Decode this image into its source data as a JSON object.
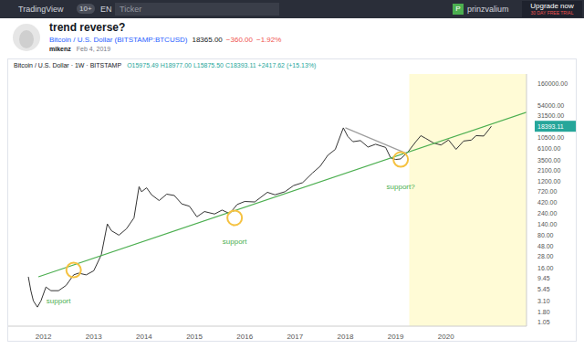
{
  "page": {
    "app": "TradingView",
    "badge": "10+",
    "lang": "EN",
    "search": "Ticker",
    "user": "prinzvalium",
    "upgrade": "Upgrade now",
    "trial": "30 DAY FREE TRIAL",
    "idea": {
      "title": "trend reverse?",
      "symbol": "Bitcoin / U.S. Dollar (BITSTAMP:BTCUSD)",
      "price": "18365.00",
      "change": "−360.00",
      "change_pct": "−1.92%",
      "author": "mikenz",
      "date": "Feb 4, 2019"
    }
  },
  "chart_data": {
    "type": "line",
    "title": "Bitcoin / U.S. Dollar · 1W · BITSTAMP",
    "subtitle": "O15975.49 H18977.00 L15875.50 C18393.11 +2417.62 (+15.13%)",
    "log": "y",
    "grid": false,
    "xlim": [
      2011.3,
      2021.6
    ],
    "xticks": [
      2012,
      2013,
      2014,
      2015,
      2016,
      2017,
      2018,
      2019,
      2020
    ],
    "ylim": [
      0.85,
      250000
    ],
    "yticks": [
      {
        "value": 1.05,
        "label": "1.05"
      },
      {
        "value": 1.8,
        "label": "1.80"
      },
      {
        "value": 3.1,
        "label": "3.10"
      },
      {
        "value": 5.45,
        "label": "5.45"
      },
      {
        "value": 9.45,
        "label": "9.45"
      },
      {
        "value": 16,
        "label": "16.00"
      },
      {
        "value": 28,
        "label": "28.00"
      },
      {
        "value": 48,
        "label": "48.00"
      },
      {
        "value": 80,
        "label": "80.00"
      },
      {
        "value": 140,
        "label": "140.00"
      },
      {
        "value": 240,
        "label": "240.00"
      },
      {
        "value": 420,
        "label": "420.00"
      },
      {
        "value": 720,
        "label": "720.00"
      },
      {
        "value": 1200,
        "label": "1200.00"
      },
      {
        "value": 2100,
        "label": "2100.00"
      },
      {
        "value": 3500,
        "label": "3500.00"
      },
      {
        "value": 6100,
        "label": "6100.00"
      },
      {
        "value": 10500,
        "label": "10500.00"
      },
      {
        "value": 18393.11,
        "label": "18393.11"
      },
      {
        "value": 31500,
        "label": "31500.00"
      },
      {
        "value": 54000,
        "label": "54000.00"
      },
      {
        "value": 160000,
        "label": "160000.00"
      }
    ],
    "shaded_x": [
      2019.27,
      2021.6
    ],
    "series": [
      {
        "name": "Bitcoin / U.S. Dollar",
        "color": "#333333",
        "line_style": "solid",
        "x": [
          2011.7,
          2011.75,
          2011.8,
          2011.88,
          2011.95,
          2012.05,
          2012.15,
          2012.3,
          2012.45,
          2012.6,
          2012.7,
          2012.85,
          2013.0,
          2013.15,
          2013.27,
          2013.35,
          2013.5,
          2013.65,
          2013.8,
          2013.9,
          2013.95,
          2014.05,
          2014.15,
          2014.3,
          2014.45,
          2014.6,
          2014.75,
          2014.9,
          2015.05,
          2015.2,
          2015.4,
          2015.55,
          2015.7,
          2015.85,
          2016.0,
          2016.2,
          2016.45,
          2016.6,
          2016.8,
          2016.97,
          2017.15,
          2017.35,
          2017.5,
          2017.65,
          2017.8,
          2017.96,
          2018.05,
          2018.15,
          2018.3,
          2018.45,
          2018.6,
          2018.8,
          2018.9,
          2019.0,
          2019.1,
          2019.25,
          2019.4,
          2019.5,
          2019.6,
          2019.75,
          2019.9,
          2020.05,
          2020.2,
          2020.35,
          2020.5,
          2020.6,
          2020.75,
          2020.85,
          2020.9
        ],
        "values": [
          10,
          5,
          3,
          2.2,
          3,
          6,
          5,
          5,
          6.5,
          11,
          12,
          11,
          13.5,
          30,
          140,
          100,
          80,
          110,
          190,
          900,
          700,
          850,
          600,
          450,
          620,
          580,
          380,
          340,
          200,
          260,
          230,
          280,
          235,
          370,
          430,
          420,
          680,
          600,
          700,
          950,
          1100,
          1800,
          2500,
          4300,
          5800,
          17000,
          11000,
          8500,
          9000,
          6500,
          7500,
          6400,
          3800,
          3500,
          3600,
          5200,
          8500,
          11500,
          10000,
          8000,
          7200,
          9300,
          5800,
          8800,
          9200,
          11500,
          11300,
          15500,
          18393.11
        ]
      },
      {
        "color": "#4caf50",
        "line_style": "solid",
        "x": [
          2011.9,
          2021.6
        ],
        "values": [
          10,
          37000
        ]
      },
      {
        "color": "#9e9e9e",
        "line_style": "solid",
        "x": [
          2018.0,
          2019.2
        ],
        "values": [
          17000,
          4800
        ]
      }
    ],
    "markers": [
      {
        "x": 2012.6,
        "y": 14
      },
      {
        "x": 2015.8,
        "y": 190
      },
      {
        "x": 2019.1,
        "y": 3500
      }
    ],
    "annotations": [
      {
        "text": "support",
        "x": 2012.3,
        "y": 3
      },
      {
        "text": "support",
        "x": 2015.8,
        "y": 60
      },
      {
        "text": "support?",
        "x": 2019.1,
        "y": 900
      }
    ]
  }
}
